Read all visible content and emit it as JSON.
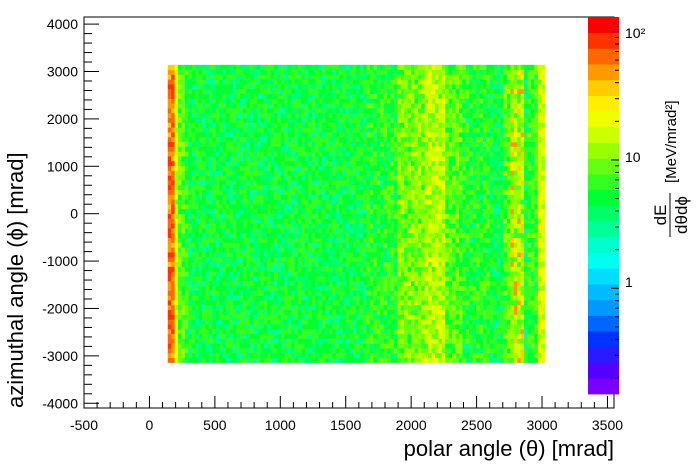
{
  "chart_data": {
    "type": "heatmap",
    "title": "",
    "xlabel": "polar angle (θ) [mrad]",
    "ylabel": "azimuthal angle (ϕ) [mrad]",
    "zlabel": {
      "numerator": "dE",
      "denominator": "dθdϕ",
      "units": "[MeV/mrad²]"
    },
    "xlim": [
      -500,
      3550
    ],
    "ylim": [
      -4100,
      4150
    ],
    "x_tick_labels": [
      "-500",
      "0",
      "500",
      "1000",
      "1500",
      "2000",
      "2500",
      "3000",
      "3500"
    ],
    "y_tick_labels": [
      "4000",
      "3000",
      "2000",
      "1000",
      "0",
      "-1000",
      "-2000",
      "-3000",
      "-4000"
    ],
    "z_scale": "log",
    "z_range": [
      0.15,
      130
    ],
    "z_tick_labels": [
      "1",
      "10",
      "10²"
    ],
    "filled_region": {
      "x_range": [
        140,
        3020
      ],
      "y_range": [
        -3140,
        3140
      ],
      "bins_x": 110,
      "bins_y": 62
    },
    "columns": {
      "x_edges_mrad": [
        140,
        180,
        220,
        260,
        300,
        1650,
        1900,
        2100,
        2250,
        2400,
        2600,
        2700,
        2770,
        2850,
        2900,
        2960,
        3020
      ],
      "typical_value": [
        60,
        18,
        8,
        6,
        5,
        6,
        10,
        14,
        8,
        6,
        5,
        8,
        12,
        5,
        7,
        18
      ],
      "notes": [
        "dense edge",
        "edge",
        "",
        "",
        "uniform bulk",
        "",
        "bright band",
        "",
        "",
        "",
        "",
        "",
        "hot spots",
        "",
        "",
        "dense edge"
      ]
    },
    "palette": [
      "#7a00ff",
      "#5500ff",
      "#2a1aff",
      "#0033ff",
      "#0066ff",
      "#0099ff",
      "#00bbff",
      "#00ddff",
      "#00ffee",
      "#00ffcc",
      "#00ff99",
      "#00ff66",
      "#00ff33",
      "#33ff22",
      "#66ff11",
      "#99ff00",
      "#ccff00",
      "#eeff00",
      "#ffee00",
      "#ffcc00",
      "#ff9900",
      "#ff6600",
      "#ff3300",
      "#ff0000"
    ],
    "grid": false,
    "legend": "none"
  }
}
